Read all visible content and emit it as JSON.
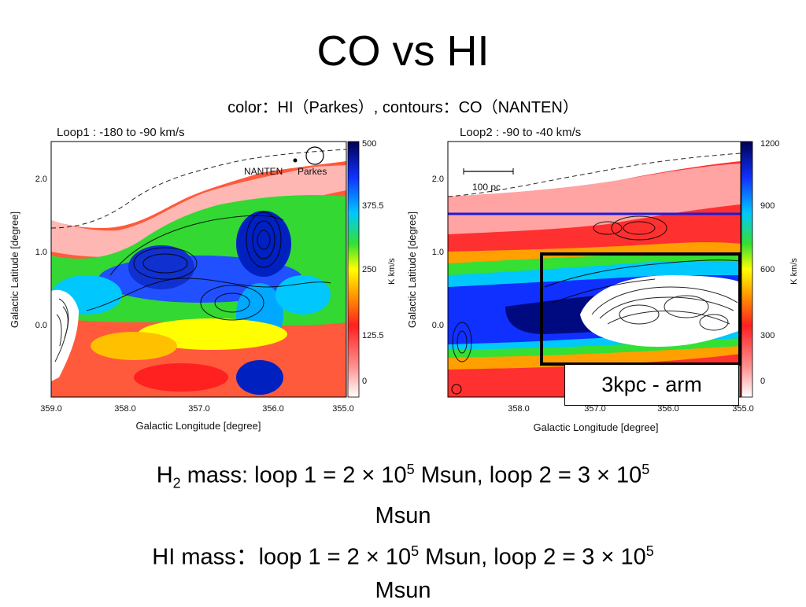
{
  "slide": {
    "title": "CO vs HI",
    "subtitle": "color：HI（Parkes）, contours：CO（NANTEN）"
  },
  "panels": [
    {
      "label": "Loop1 : -180 to -90 km/s",
      "x_axis_label": "Galactic Longitude [degree]",
      "y_axis_label": "Galactic Latitude [degree]",
      "x_ticks": [
        "359.0",
        "358.0",
        "357.0",
        "356.0",
        "355.0"
      ],
      "y_ticks": [
        "2.0",
        "1.0",
        "0.0"
      ],
      "colorbar_ticks": [
        "500",
        "375.5",
        "250",
        "125.5",
        "0"
      ],
      "colorbar_label": "K km/s",
      "beam_labels": {
        "nanten": "NANTEN",
        "parkes": "Parkes"
      }
    },
    {
      "label": "Loop2 : -90 to -40 km/s",
      "x_axis_label": "Galactic Longitude [degree]",
      "y_axis_label": "Galactic Latitude [degree]",
      "x_ticks": [
        "358.0",
        "357.0",
        "356.0",
        "355.0"
      ],
      "y_ticks": [
        "2.0",
        "1.0",
        "0.0"
      ],
      "colorbar_ticks": [
        "1200",
        "900",
        "600",
        "300",
        "0"
      ],
      "colorbar_label": "K km/s",
      "scale_bar_label": "100 pc",
      "annotation": "3kpc - arm",
      "line_color": "#1a1adc"
    }
  ],
  "mass": {
    "h2": {
      "prefix": "H",
      "sub": "2",
      "text1": " mass: loop 1 = 2 × 10",
      "exp1": "5",
      "text2": " Msun, loop 2 = 3 × 10",
      "exp2": "5",
      "unit": "Msun"
    },
    "hi": {
      "text1": "HI mass：loop 1 = 2 × 10",
      "exp1": "5",
      "text2": " Msun, loop 2 = 3 × 10",
      "exp2": "5",
      "unit": "Msun"
    }
  }
}
